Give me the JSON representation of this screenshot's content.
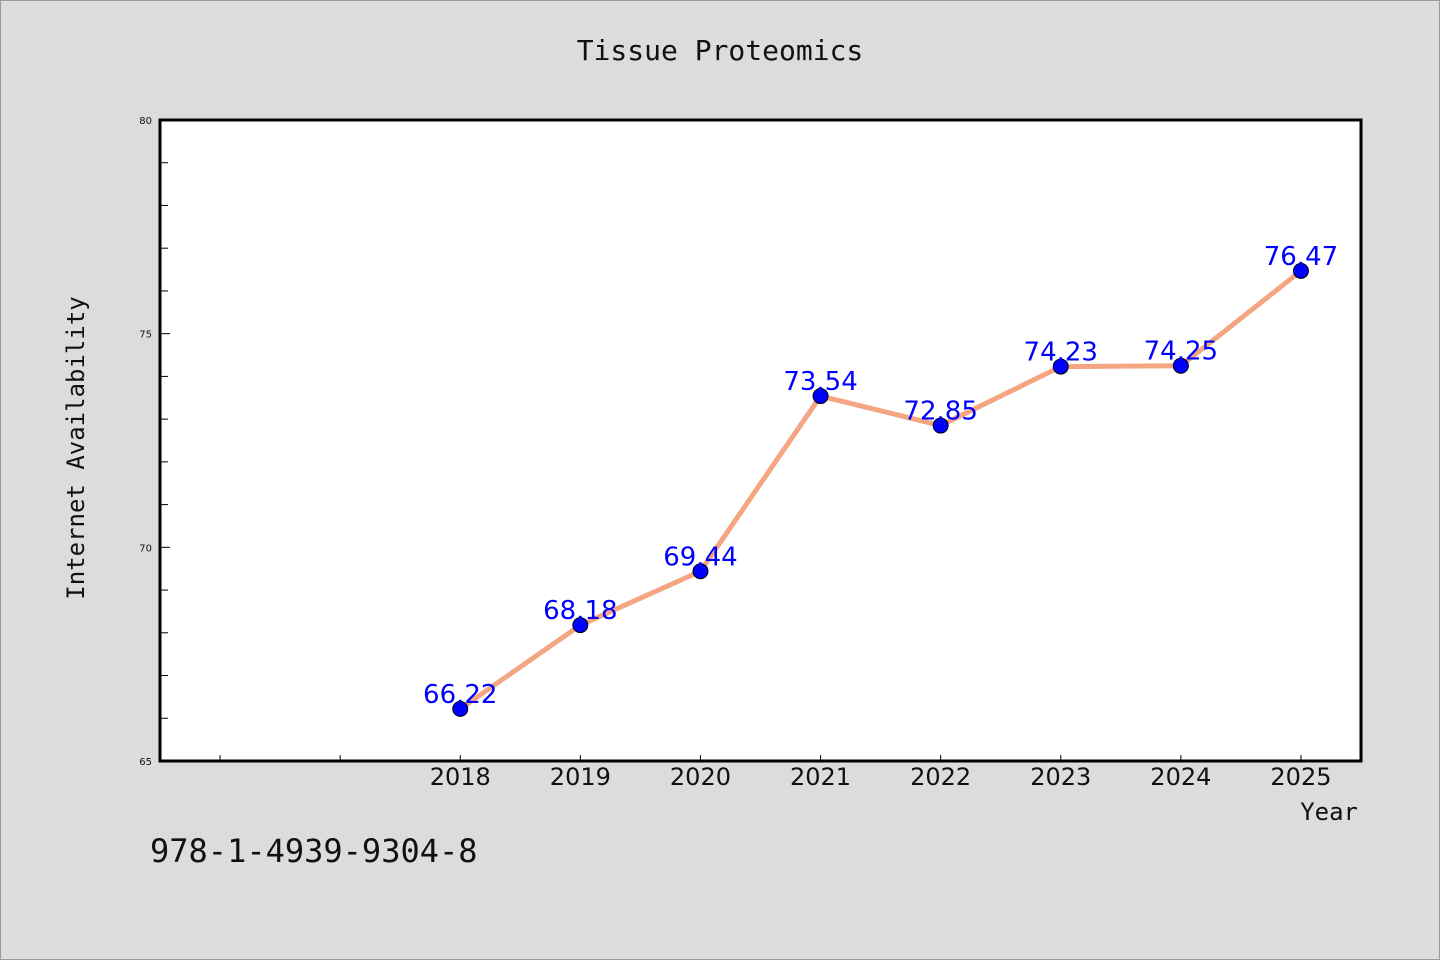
{
  "page": {
    "isbn": "978-1-4939-9304-8"
  },
  "chart_data": {
    "type": "line",
    "title": "Tissue Proteomics",
    "xlabel": "Year",
    "ylabel": "Internet Availability",
    "x": [
      "2018",
      "2019",
      "2020",
      "2021",
      "2022",
      "2023",
      "2024",
      "2025"
    ],
    "series": [
      {
        "values": [
          66.22,
          68.18,
          69.44,
          73.54,
          72.85,
          74.23,
          74.25,
          76.47
        ],
        "labels": [
          "66.22",
          "68.18",
          "69.44",
          "73.54",
          "72.85",
          "74.23",
          "74.25",
          "76.47"
        ]
      }
    ],
    "ylim": [
      65,
      80
    ],
    "yticks": [
      "65",
      "70",
      "75",
      "80"
    ],
    "x_range": [
      2015.5,
      2025.5
    ],
    "grid": false,
    "legend": "none",
    "colors": {
      "line": "#f4a582",
      "marker": "#0000ff",
      "label": "#0000ff"
    }
  }
}
